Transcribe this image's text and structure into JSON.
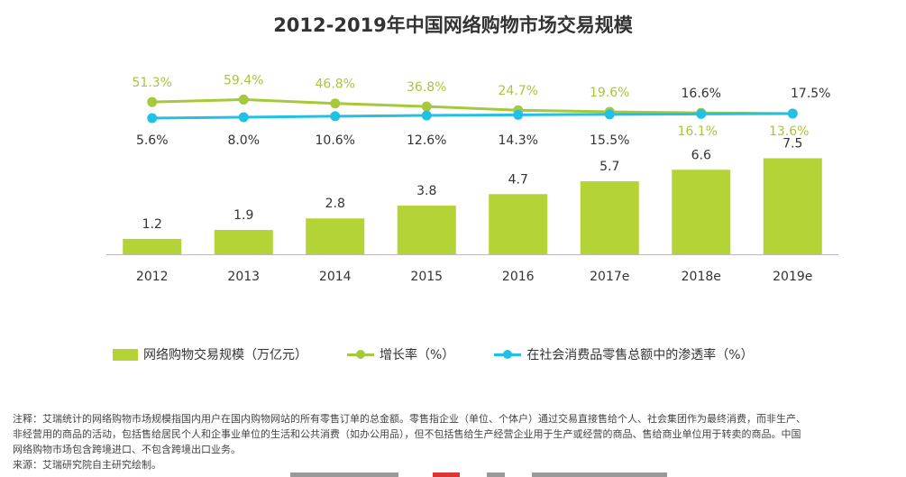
{
  "colors": {
    "bar": "#b4d337",
    "growth": "#a5c93a",
    "growth_label": "#a8c63c",
    "penetration": "#23c0e6",
    "text": "#333333",
    "axis": "#bbbbbb"
  },
  "legend": {
    "bar_label": "网络购物交易规模（万亿元）",
    "growth_label": "增长率（%）",
    "penetration_label": "在社会消费品零售总额中的渗透率（%）"
  },
  "footnote": {
    "line1": "注释：艾瑞统计的网络购物市场规模指国内用户在国内购物网站的所有零售订单的总金额。零售指企业（单位、个体户）通过交易直接售给个人、社会集团作为最终消费，而非生产、",
    "line2": "非经营用的商品的活动，包括售给居民个人和企事业单位的生活和公共消费（如办公用品），但不包括售给生产经营企业用于生产或经营的商品、售给商业单位用于转卖的商品。中国",
    "line3": "网络购物市场包含跨境进口、不包含跨境出口业务。",
    "line4": "来源：艾瑞研究院自主研究绘制。"
  },
  "chart_data": {
    "type": "bar",
    "title": "2012-2019年中国网络购物市场交易规模",
    "categories": [
      "2012",
      "2013",
      "2014",
      "2015",
      "2016",
      "2017e",
      "2018e",
      "2019e"
    ],
    "series": [
      {
        "name": "网络购物交易规模（万亿元）",
        "type": "bar",
        "values": [
          1.2,
          1.9,
          2.8,
          3.8,
          4.7,
          5.7,
          6.6,
          7.5
        ],
        "labels": [
          "1.2",
          "1.9",
          "2.8",
          "3.8",
          "4.7",
          "5.7",
          "6.6",
          "7.5"
        ]
      },
      {
        "name": "增长率（%）",
        "type": "line",
        "values": [
          51.3,
          59.4,
          46.8,
          36.8,
          24.7,
          19.6,
          16.1,
          13.6
        ],
        "labels": [
          "51.3%",
          "59.4%",
          "46.8%",
          "36.8%",
          "24.7%",
          "19.6%",
          "16.1%",
          "13.6%"
        ]
      },
      {
        "name": "在社会消费品零售总额中的渗透率（%）",
        "type": "line",
        "values": [
          5.6,
          8.0,
          10.6,
          12.6,
          14.3,
          15.5,
          16.6,
          17.5
        ],
        "labels": [
          "5.6%",
          "8.0%",
          "10.6%",
          "12.6%",
          "14.3%",
          "15.5%",
          "16.6%",
          "17.5%"
        ]
      }
    ],
    "legend_position": "bottom-left",
    "grid": false
  }
}
